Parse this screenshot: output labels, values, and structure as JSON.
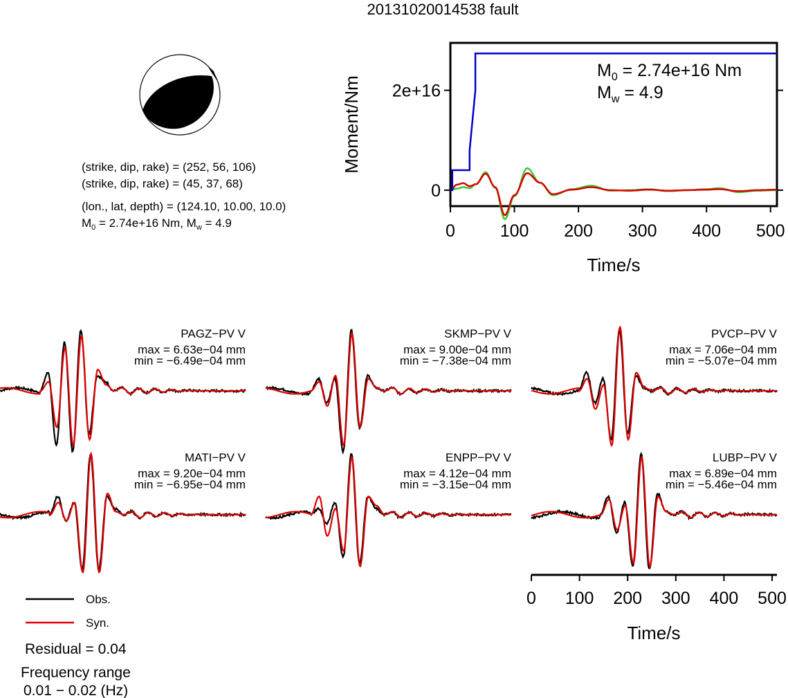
{
  "title": "20131020014538 fault",
  "mechanism": {
    "lines": [
      "(strike, dip, rake) = (252, 56, 106)",
      "(strike, dip, rake) = (45, 37, 68)",
      "(lon., lat, depth) = (124.10, 10.00, 10.0)"
    ],
    "moment_label": "M",
    "moment_sub": "0",
    "moment_text": " = 2.74e+16 Nm, M",
    "mw_sub": "w",
    "mw_text": " = 4.9"
  },
  "legend": {
    "obs": "Obs.",
    "syn": "Syn.",
    "residual": "Residual = 0.04",
    "freq_title": "Frequency range",
    "freq_value": "0.01 − 0.02 (Hz)"
  },
  "colors": {
    "obs": "#000000",
    "syn": "#dd0000",
    "moment": "#0000cc",
    "green": "#33cc33"
  },
  "chart_data": [
    {
      "type": "line",
      "name": "moment_plot",
      "xlabel": "Time/s",
      "ylabel": "Moment/Nm",
      "xlim": [
        0,
        510
      ],
      "ylim": [
        -3200000000000000.0,
        2.95e+16
      ],
      "xticks": [
        0,
        100,
        200,
        300,
        400,
        500
      ],
      "ytick_values": [
        0,
        2e+16
      ],
      "ytick_labels": [
        "0",
        "2e+16"
      ],
      "annotation_m0_label": "M",
      "annotation_m0_sub": "0",
      "annotation_m0_text": " = 2.74e+16 Nm",
      "annotation_mw_label": "M",
      "annotation_mw_sub": "w",
      "annotation_mw_text": " = 4.9",
      "series": [
        {
          "x": [
            0,
            3,
            3,
            30,
            30,
            39,
            39,
            510
          ],
          "y": [
            0,
            0,
            4000000000000000.0,
            4000000000000000.0,
            8000000000000000.0,
            2e+16,
            2.74e+16,
            2.74e+16
          ]
        },
        {
          "x": [
            0,
            10,
            20,
            30,
            40,
            55,
            70,
            85,
            100,
            120,
            140,
            160,
            190,
            220,
            250,
            280,
            310,
            340,
            370,
            400,
            420,
            450,
            480,
            510
          ],
          "y": [
            0,
            300000000000000.0,
            600000000000000.0,
            400000000000000.0,
            1200000000000000.0,
            3600000000000000.0,
            500000000000000.0,
            -5800000000000000.0,
            -1200000000000000.0,
            4400000000000000.0,
            1500000000000000.0,
            -1000000000000000.0,
            200000000000000.0,
            900000000000000.0,
            -100000000000000.0,
            0,
            200000000000000.0,
            -200000000000000.0,
            0,
            200000000000000.0,
            400000000000000.0,
            -400000000000000.0,
            -100000000000000.0,
            0
          ]
        },
        {
          "x": [
            0,
            10,
            20,
            30,
            40,
            55,
            70,
            85,
            100,
            120,
            140,
            160,
            190,
            220,
            250,
            280,
            310,
            340,
            370,
            400,
            420,
            450,
            480,
            510
          ],
          "y": [
            0,
            1100000000000000.0,
            1400000000000000.0,
            800000000000000.0,
            1200000000000000.0,
            3300000000000000.0,
            600000000000000.0,
            -5000000000000000.0,
            -1000000000000000.0,
            3400000000000000.0,
            1500000000000000.0,
            -800000000000000.0,
            100000000000000.0,
            600000000000000.0,
            0,
            -100000000000000.0,
            100000000000000.0,
            -100000000000000.0,
            0,
            100000000000000.0,
            200000000000000.0,
            -200000000000000.0,
            0,
            100000000000000.0
          ]
        }
      ]
    },
    {
      "type": "line",
      "name": "waveforms",
      "xlabel": "Time/s",
      "xlim": [
        0,
        510
      ],
      "xticks": [
        0,
        100,
        200,
        300,
        400,
        500
      ],
      "stations": [
        {
          "name": "PAGZ−PV V",
          "max": "max = 6.63e−04 mm",
          "min": "min = −6.49e−04 mm",
          "arrival": 100,
          "amp": 6.63,
          "obs_peaks": [
            0.3,
            -0.9,
            0.8,
            -1.0,
            1.0,
            -0.7,
            0.25,
            0.15
          ],
          "syn_peaks": [
            0.15,
            -0.6,
            0.7,
            -0.9,
            0.9,
            -0.8,
            0.35,
            0.1
          ]
        },
        {
          "name": "SKMP−PV V",
          "max": "max = 9.00e−04 mm",
          "min": "min = −7.38e−04 mm",
          "arrival": 110,
          "amp": 9.0,
          "obs_peaks": [
            0.2,
            -0.2,
            0.2,
            -1.0,
            1.0,
            -0.6,
            0.25,
            0.05
          ],
          "syn_peaks": [
            0.15,
            -0.25,
            0.25,
            -0.9,
            0.95,
            -0.6,
            0.2,
            0.05
          ]
        },
        {
          "name": "PVCP−PV V",
          "max": "max = 7.06e−04 mm",
          "min": "min = −5.07e−04 mm",
          "arrival": 115,
          "amp": 7.06,
          "obs_peaks": [
            0.3,
            -0.2,
            0.2,
            -0.8,
            1.0,
            -0.7,
            0.25,
            0.05
          ],
          "syn_peaks": [
            0.2,
            -0.3,
            0.1,
            -0.9,
            1.05,
            -0.8,
            0.3,
            0.05
          ]
        },
        {
          "name": "MATI−PV V",
          "max": "max = 9.20e−04 mm",
          "min": "min = −6.95e−04 mm",
          "arrival": 120,
          "amp": 9.2,
          "obs_peaks": [
            0.3,
            -0.1,
            0.2,
            -0.9,
            1.0,
            -0.9,
            0.3,
            0.1
          ],
          "syn_peaks": [
            0.2,
            -0.1,
            0.2,
            -0.95,
            1.0,
            -0.95,
            0.35,
            0.05
          ]
        },
        {
          "name": "ENPP−PV V",
          "max": "max = 4.12e−04 mm",
          "min": "min = −3.15e−04 mm",
          "arrival": 110,
          "amp": 4.12,
          "obs_peaks": [
            0.1,
            -0.15,
            0.2,
            -0.7,
            1.0,
            -0.8,
            0.3,
            0.1
          ],
          "syn_peaks": [
            0.3,
            -0.35,
            0.1,
            -0.6,
            0.95,
            -0.85,
            0.3,
            0.15
          ]
        },
        {
          "name": "LUBP−PV V",
          "max": "max = 6.89e−04 mm",
          "min": "min = −5.46e−04 mm",
          "arrival": 160,
          "amp": 6.89,
          "obs_peaks": [
            0.3,
            -0.3,
            0.2,
            -0.85,
            1.0,
            -0.9,
            0.35,
            0.05
          ],
          "syn_peaks": [
            0.25,
            -0.25,
            0.15,
            -0.8,
            0.95,
            -0.85,
            0.3,
            0.05
          ]
        }
      ]
    }
  ]
}
